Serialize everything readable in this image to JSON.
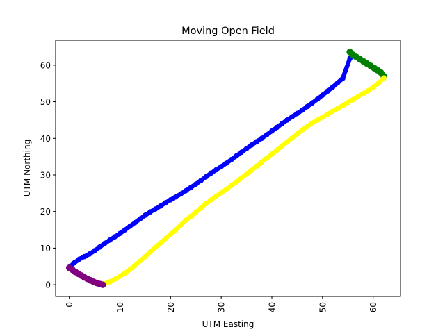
{
  "chart_data": {
    "type": "scatter",
    "title": "Moving Open Field",
    "xlabel": "UTM Easting",
    "ylabel": "UTM Northing",
    "xlim": [
      -2.7,
      65.4
    ],
    "ylim": [
      -3.2,
      66.8
    ],
    "x_ticks": [
      0,
      10,
      20,
      30,
      40,
      50,
      60
    ],
    "y_ticks": [
      0,
      10,
      20,
      30,
      40,
      50,
      60
    ],
    "x_tick_rotation": 90,
    "grid": false,
    "legend": "none",
    "series": [
      {
        "color": "#0000ff",
        "segment": "lower-left corner to upper-right corner",
        "x": [
          0.0,
          1.0,
          2.0,
          3.0,
          4.0,
          5.0,
          6.0,
          7.0,
          8.0,
          9.0,
          10.0,
          11.0,
          12.0,
          13.0,
          14.0,
          15.0,
          16.0,
          17.0,
          18.0,
          19.0,
          20.0,
          21.0,
          22.0,
          23.0,
          24.0,
          25.0,
          26.0,
          27.0,
          28.0,
          29.0,
          30.0,
          31.0,
          32.0,
          33.0,
          34.0,
          35.0,
          36.0,
          37.0,
          38.0,
          39.0,
          40.0,
          41.0,
          42.0,
          43.0,
          44.0,
          45.0,
          46.0,
          47.0,
          48.0,
          49.0,
          50.0,
          51.0,
          52.0,
          53.0,
          54.0,
          55.4
        ],
        "y": [
          4.8,
          6.0,
          7.0,
          7.7,
          8.4,
          9.3,
          10.3,
          11.3,
          12.2,
          13.1,
          14.0,
          15.0,
          16.0,
          17.0,
          18.0,
          19.0,
          19.9,
          20.7,
          21.5,
          22.4,
          23.2,
          24.0,
          24.8,
          25.7,
          26.6,
          27.5,
          28.5,
          29.5,
          30.5,
          31.4,
          32.3,
          33.2,
          34.2,
          35.2,
          36.2,
          37.2,
          38.2,
          39.1,
          40.0,
          41.0,
          42.0,
          43.0,
          44.0,
          45.0,
          45.9,
          46.8,
          47.7,
          48.7,
          49.7,
          50.7,
          51.8,
          52.9,
          54.0,
          55.2,
          56.4,
          61.8
        ]
      },
      {
        "color": "#008000",
        "segment": "upper-right corner",
        "x": [
          55.4,
          56.0,
          56.7,
          57.4,
          58.1,
          58.8,
          59.5,
          60.2,
          60.9,
          61.5,
          62.1
        ],
        "y": [
          63.6,
          62.8,
          62.2,
          61.6,
          61.0,
          60.4,
          59.8,
          59.2,
          58.6,
          58.0,
          57.0
        ]
      },
      {
        "color": "#ffff00",
        "segment": "upper-right corner down to lower-left corner",
        "x": [
          62.1,
          61.0,
          60.0,
          59.0,
          58.0,
          57.0,
          56.0,
          55.0,
          54.0,
          53.0,
          52.0,
          51.0,
          50.0,
          49.0,
          48.0,
          47.0,
          46.0,
          45.0,
          44.0,
          43.0,
          42.0,
          41.0,
          40.0,
          39.0,
          38.0,
          37.0,
          36.0,
          35.0,
          34.0,
          33.0,
          32.0,
          31.0,
          30.0,
          29.0,
          28.0,
          27.0,
          26.0,
          25.0,
          24.0,
          23.0,
          22.0,
          21.0,
          20.0,
          19.0,
          18.0,
          17.0,
          16.0,
          15.0,
          14.0,
          13.0,
          12.0,
          11.0,
          10.0,
          9.0,
          8.0,
          7.0,
          6.6
        ],
        "y": [
          56.5,
          55.0,
          54.0,
          53.0,
          52.2,
          51.4,
          50.6,
          49.8,
          49.0,
          48.2,
          47.4,
          46.6,
          45.8,
          45.0,
          44.2,
          43.3,
          42.3,
          41.2,
          40.1,
          39.0,
          37.9,
          36.8,
          35.7,
          34.6,
          33.5,
          32.4,
          31.3,
          30.2,
          29.2,
          28.1,
          27.1,
          26.1,
          25.1,
          24.2,
          23.2,
          22.2,
          21.0,
          19.8,
          18.7,
          17.6,
          16.3,
          15.0,
          13.8,
          12.6,
          11.4,
          10.2,
          9.0,
          7.7,
          6.5,
          5.3,
          4.2,
          3.2,
          2.3,
          1.5,
          0.8,
          0.3,
          0.0
        ]
      },
      {
        "color": "#800080",
        "segment": "lower-left corner",
        "x": [
          6.6,
          6.0,
          5.4,
          4.8,
          4.2,
          3.6,
          3.0,
          2.4,
          1.8,
          1.2,
          0.6,
          0.0
        ],
        "y": [
          0.0,
          0.2,
          0.5,
          0.8,
          1.2,
          1.6,
          2.0,
          2.5,
          3.0,
          3.5,
          4.1,
          4.6
        ]
      }
    ]
  }
}
